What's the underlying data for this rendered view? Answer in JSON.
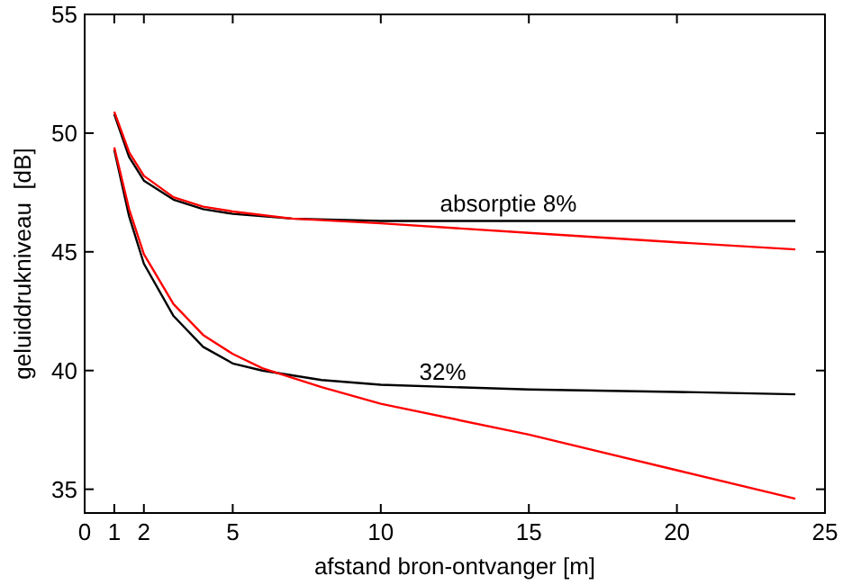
{
  "chart_data": {
    "type": "line",
    "xlabel": "afstand bron-ontvanger [m]",
    "ylabel": "geluiddrukniveau  [dB]",
    "xlim": [
      0,
      25
    ],
    "ylim": [
      34,
      55
    ],
    "xticks": [
      0,
      1,
      2,
      5,
      10,
      15,
      20,
      25
    ],
    "yticks": [
      35,
      40,
      45,
      50,
      55
    ],
    "grid": false,
    "series": [
      {
        "color": "#000000",
        "x": [
          1,
          1.5,
          2,
          3,
          4,
          5,
          7,
          10,
          15,
          20,
          24
        ],
        "values": [
          50.8,
          49.0,
          48.0,
          47.2,
          46.8,
          46.6,
          46.4,
          46.3,
          46.3,
          46.3,
          46.3
        ]
      },
      {
        "color": "#ff0000",
        "x": [
          1,
          1.5,
          2,
          3,
          4,
          5,
          7,
          10,
          15,
          20,
          24
        ],
        "values": [
          50.9,
          49.2,
          48.2,
          47.3,
          46.9,
          46.7,
          46.4,
          46.2,
          45.8,
          45.4,
          45.1
        ]
      },
      {
        "color": "#000000",
        "x": [
          1,
          1.5,
          2,
          3,
          4,
          5,
          6,
          8,
          10,
          15,
          20,
          24
        ],
        "values": [
          49.3,
          46.5,
          44.5,
          42.3,
          41.0,
          40.3,
          40.0,
          39.6,
          39.4,
          39.2,
          39.1,
          39.0
        ]
      },
      {
        "color": "#ff0000",
        "x": [
          1,
          1.5,
          2,
          3,
          4,
          5,
          6,
          8,
          10,
          15,
          20,
          24
        ],
        "values": [
          49.4,
          46.8,
          44.9,
          42.8,
          41.5,
          40.7,
          40.1,
          39.3,
          38.6,
          37.3,
          35.8,
          34.6
        ]
      }
    ],
    "annotations": [
      {
        "text": "absorptie 8%",
        "x": 12,
        "y": 46.7
      },
      {
        "text": "32%",
        "x": 11.3,
        "y": 39.6
      }
    ]
  }
}
